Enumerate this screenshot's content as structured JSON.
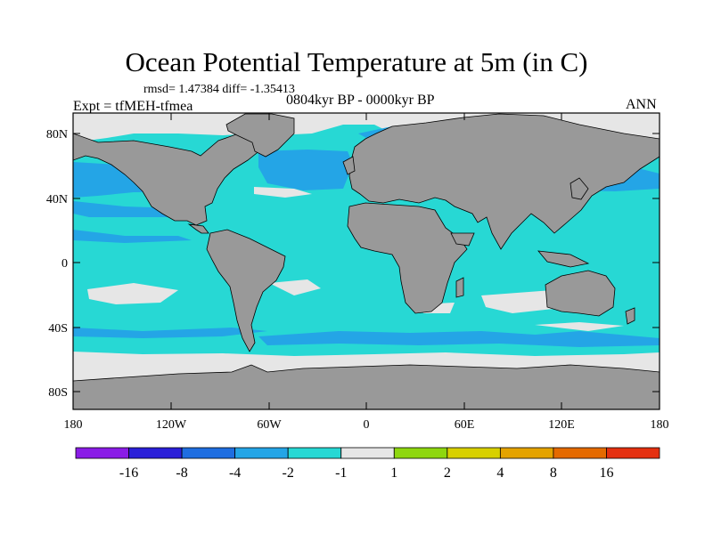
{
  "map": {
    "title": "Ocean Potential Temperature at 5m (in C)",
    "stats_text": "rmsd= 1.47384 diff= -1.35413",
    "experiment": "Expt = tfMEH-tfmea",
    "period": "0804kyr BP - 0000kyr BP",
    "season": "ANN",
    "lat_ticks": [
      "80N",
      "40N",
      "0",
      "40S",
      "80S"
    ],
    "lon_ticks": [
      "180",
      "120W",
      "60W",
      "0",
      "60E",
      "120E",
      "180"
    ]
  },
  "colorbar": {
    "labels": [
      "-16",
      "-8",
      "-4",
      "-2",
      "-1",
      "1",
      "2",
      "4",
      "8",
      "16"
    ],
    "colors": [
      "#8a1ce6",
      "#2b20d8",
      "#1f6ee0",
      "#24a5e6",
      "#27d8d4",
      "#e6e6e6",
      "#8ed70f",
      "#d8d000",
      "#e4a300",
      "#e46a00",
      "#e43010"
    ]
  },
  "colors": {
    "land": "#999999",
    "ocean_cool": "#27d8d4",
    "ocean_cooler": "#24a5e6",
    "neutral": "#e6e6e6"
  }
}
